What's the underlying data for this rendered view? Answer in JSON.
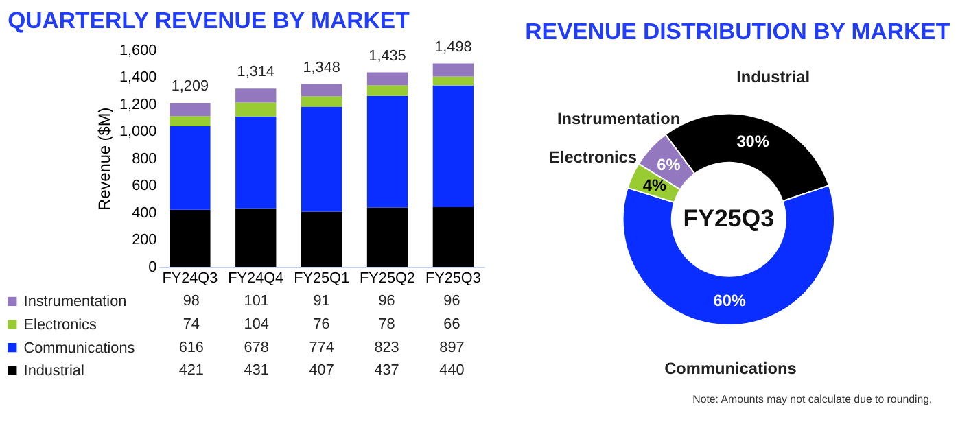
{
  "chart_data": [
    {
      "type": "bar",
      "stacked": true,
      "title": "QUARTERLY REVENUE BY MARKET",
      "ylabel": "Revenue ($M)",
      "categories": [
        "FY24Q3",
        "FY24Q4",
        "FY25Q1",
        "FY25Q2",
        "FY25Q3"
      ],
      "series": [
        {
          "name": "Industrial",
          "color": "#000000",
          "values": [
            421,
            431,
            407,
            437,
            440
          ]
        },
        {
          "name": "Communications",
          "color": "#0a2eff",
          "values": [
            616,
            678,
            774,
            823,
            897
          ]
        },
        {
          "name": "Electronics",
          "color": "#99cc33",
          "values": [
            74,
            104,
            76,
            78,
            66
          ]
        },
        {
          "name": "Instrumentation",
          "color": "#9378c0",
          "values": [
            98,
            101,
            91,
            96,
            96
          ]
        }
      ],
      "ylim": [
        0,
        1600
      ],
      "yticks": [
        0,
        200,
        400,
        600,
        800,
        {
          "value": 1000,
          "label": "1,000"
        },
        {
          "value": 1200,
          "label": "1,200"
        },
        {
          "value": 1400,
          "label": "1,400"
        },
        {
          "value": 1600,
          "label": "1,600"
        }
      ],
      "totals": [
        "1,209",
        "1,314",
        "1,348",
        "1,435",
        "1,498"
      ],
      "data_labels": true,
      "legend": "bottom"
    },
    {
      "type": "donut",
      "title": "REVENUE DISTRIBUTION BY MARKET",
      "categories": [
        "Industrial",
        "Communications",
        "Electronics",
        "Instrumentation"
      ],
      "values": [
        30,
        60,
        4,
        6
      ],
      "colors": [
        "#000000",
        "#0a2eff",
        "#99cc33",
        "#9378c0"
      ],
      "value_labels": [
        "30%",
        "60%",
        "4%",
        "6%"
      ],
      "annotations": [
        "FY25Q3",
        "Note: Amounts may not calculate due to rounding."
      ]
    }
  ]
}
